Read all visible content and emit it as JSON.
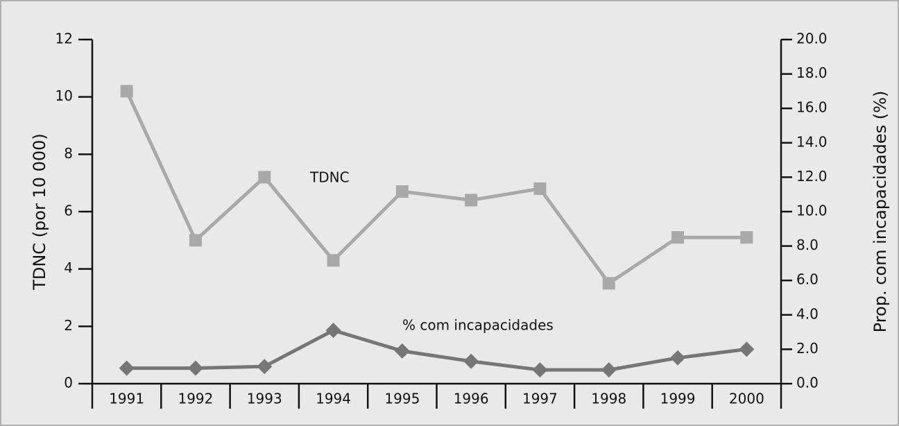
{
  "chart_data": {
    "type": "line",
    "categories": [
      "1991",
      "1992",
      "1993",
      "1994",
      "1995",
      "1996",
      "1997",
      "1998",
      "1999",
      "2000"
    ],
    "ylabel": "TDNC (por 10 000)",
    "y2label": "Prop. com incapacidades (%)",
    "ylim": [
      0,
      12
    ],
    "yticks": [
      0,
      2,
      4,
      6,
      8,
      10,
      12
    ],
    "y2lim": [
      0,
      20
    ],
    "y2ticks": [
      {
        "value": 0,
        "label": "0.0"
      },
      {
        "value": 2,
        "label": "2.0"
      },
      {
        "value": 4,
        "label": "4.0"
      },
      {
        "value": 6,
        "label": "6.0"
      },
      {
        "value": 8,
        "label": "8.0"
      },
      {
        "value": 10,
        "label": "10.0"
      },
      {
        "value": 12,
        "label": "12.0"
      },
      {
        "value": 14,
        "label": "14.0"
      },
      {
        "value": 16,
        "label": "16.0"
      },
      {
        "value": 18,
        "label": "18.0"
      },
      {
        "value": 20,
        "label": "20.0"
      }
    ],
    "series": [
      {
        "name": "TDNC",
        "color": "#a9a9a9",
        "marker": "square",
        "values": [
          10.2,
          5.0,
          7.2,
          4.3,
          6.7,
          6.4,
          6.8,
          3.5,
          5.1,
          5.1
        ]
      },
      {
        "name": "% com incapacidades",
        "color": "#767676",
        "marker": "diamond",
        "axis": "y2",
        "values": [
          0.9,
          0.9,
          1.0,
          3.1,
          1.9,
          1.3,
          0.8,
          0.8,
          1.5,
          2.0
        ]
      }
    ]
  }
}
